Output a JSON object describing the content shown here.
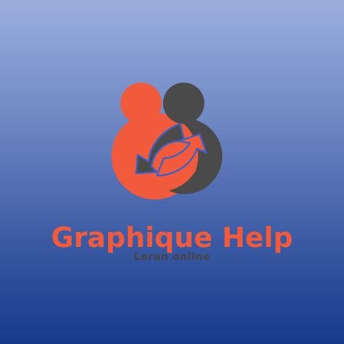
{
  "logo": {
    "name": "Graphique Help",
    "tagline": "Leran online",
    "icon": "two-people-refresh-arrows-icon"
  },
  "colors": {
    "accent": "#f15a3a",
    "dark": "#4a4a4a",
    "background_top": "#9aaedd",
    "background_bottom": "#173a8a"
  }
}
